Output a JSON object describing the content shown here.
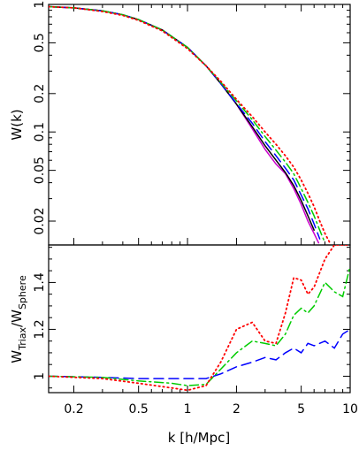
{
  "chart_data": [
    {
      "type": "line",
      "panel": "top",
      "ylabel": "W(k)",
      "yscale": "log",
      "xscale": "log",
      "xlim": [
        0.14,
        10
      ],
      "ylim": [
        0.013,
        1.0
      ],
      "yticks": [
        1,
        0.5,
        0.2,
        0.1,
        0.05,
        0.02
      ],
      "ytick_labels": [
        "1",
        "0.5",
        "0.2",
        "0.1",
        "0.05",
        "0.02"
      ],
      "grid": false,
      "series": [
        {
          "style": "solid",
          "color": "#cc00cc",
          "x": [
            0.14,
            0.2,
            0.3,
            0.4,
            0.5,
            0.7,
            1.0,
            1.3,
            1.6,
            2.0,
            2.5,
            3.0,
            3.5,
            4.0,
            4.5,
            5.0,
            5.5,
            6.0,
            6.4
          ],
          "y": [
            0.96,
            0.94,
            0.89,
            0.83,
            0.76,
            0.63,
            0.46,
            0.33,
            0.24,
            0.165,
            0.106,
            0.073,
            0.056,
            0.047,
            0.036,
            0.027,
            0.02,
            0.016,
            0.0135
          ]
        },
        {
          "style": "solid",
          "color": "#000000",
          "x": [
            0.14,
            0.2,
            0.3,
            0.4,
            0.5,
            0.7,
            1.0,
            1.3,
            1.6,
            2.0,
            2.5,
            3.0,
            3.5,
            4.0,
            4.5,
            5.0,
            5.5,
            6.0
          ],
          "y": [
            0.96,
            0.94,
            0.89,
            0.83,
            0.76,
            0.63,
            0.46,
            0.33,
            0.24,
            0.165,
            0.11,
            0.078,
            0.06,
            0.048,
            0.038,
            0.029,
            0.022,
            0.017
          ]
        },
        {
          "style": "dashed",
          "color": "#0000ff",
          "x": [
            0.14,
            0.2,
            0.3,
            0.4,
            0.5,
            0.7,
            1.0,
            1.3,
            1.6,
            2.0,
            2.5,
            3.0,
            3.5,
            4.0,
            4.5,
            5.0,
            5.5,
            6.0,
            6.5
          ],
          "y": [
            0.96,
            0.94,
            0.89,
            0.83,
            0.76,
            0.63,
            0.46,
            0.33,
            0.24,
            0.167,
            0.117,
            0.084,
            0.065,
            0.052,
            0.042,
            0.032,
            0.025,
            0.019,
            0.0145
          ]
        },
        {
          "style": "dash-dot",
          "color": "#00cc00",
          "x": [
            0.14,
            0.2,
            0.3,
            0.4,
            0.5,
            0.7,
            1.0,
            1.3,
            1.6,
            2.0,
            2.5,
            3.0,
            3.5,
            4.0,
            4.5,
            5.0,
            5.5,
            6.0,
            6.5,
            7.0
          ],
          "y": [
            0.96,
            0.94,
            0.89,
            0.83,
            0.76,
            0.63,
            0.46,
            0.33,
            0.245,
            0.175,
            0.125,
            0.092,
            0.072,
            0.058,
            0.047,
            0.036,
            0.028,
            0.022,
            0.017,
            0.0135
          ]
        },
        {
          "style": "dotted",
          "color": "#ff0000",
          "x": [
            0.14,
            0.2,
            0.3,
            0.4,
            0.5,
            0.7,
            1.0,
            1.3,
            1.6,
            2.0,
            2.5,
            3.0,
            3.5,
            4.0,
            4.5,
            5.0,
            5.5,
            6.0,
            6.5,
            7.0,
            7.5
          ],
          "y": [
            0.96,
            0.94,
            0.88,
            0.82,
            0.75,
            0.62,
            0.45,
            0.33,
            0.25,
            0.18,
            0.132,
            0.1,
            0.08,
            0.065,
            0.053,
            0.042,
            0.033,
            0.026,
            0.02,
            0.016,
            0.0135
          ]
        }
      ]
    },
    {
      "type": "line",
      "panel": "bottom",
      "ylabel": "W_Triax/W_Sphere",
      "ylabel_main": "W",
      "ylabel_sub1": "Triax",
      "ylabel_sep": "/W",
      "ylabel_sub2": "Sphere",
      "xlabel": "k [h/Mpc]",
      "xscale": "log",
      "xlim": [
        0.14,
        10
      ],
      "ylim": [
        0.93,
        1.56
      ],
      "yticks": [
        1,
        1.2,
        1.4
      ],
      "ytick_labels": [
        "1",
        "1.2",
        "1.4"
      ],
      "xticks": [
        0.2,
        0.5,
        1,
        2,
        5,
        10
      ],
      "xtick_labels": [
        "0.2",
        "0.5",
        "1",
        "2",
        "5",
        "10"
      ],
      "grid": false,
      "series": [
        {
          "style": "dashed",
          "color": "#0000ff",
          "x": [
            0.14,
            0.3,
            0.5,
            0.8,
            1.0,
            1.3,
            1.6,
            2.0,
            2.5,
            3.0,
            3.5,
            4.0,
            4.5,
            5.0,
            5.5,
            6.0,
            7.0,
            8.0,
            9.0,
            10.0
          ],
          "y": [
            1.0,
            0.995,
            0.99,
            0.99,
            0.99,
            0.99,
            1.01,
            1.04,
            1.06,
            1.08,
            1.07,
            1.1,
            1.12,
            1.1,
            1.14,
            1.13,
            1.15,
            1.12,
            1.18,
            1.2
          ]
        },
        {
          "style": "dash-dot",
          "color": "#00cc00",
          "x": [
            0.14,
            0.3,
            0.5,
            0.8,
            1.0,
            1.3,
            1.6,
            2.0,
            2.5,
            3.0,
            3.5,
            4.0,
            4.5,
            5.0,
            5.5,
            6.0,
            7.0,
            8.0,
            9.0,
            10.0
          ],
          "y": [
            1.0,
            0.995,
            0.98,
            0.97,
            0.96,
            0.965,
            1.03,
            1.1,
            1.15,
            1.14,
            1.13,
            1.18,
            1.26,
            1.29,
            1.27,
            1.3,
            1.4,
            1.36,
            1.34,
            1.47
          ]
        },
        {
          "style": "dotted",
          "color": "#ff0000",
          "x": [
            0.14,
            0.3,
            0.5,
            0.8,
            1.0,
            1.3,
            1.6,
            2.0,
            2.5,
            3.0,
            3.5,
            4.0,
            4.5,
            5.0,
            5.5,
            6.0,
            7.0,
            8.0,
            9.0,
            10.0
          ],
          "y": [
            1.0,
            0.99,
            0.97,
            0.95,
            0.94,
            0.96,
            1.06,
            1.2,
            1.23,
            1.15,
            1.14,
            1.27,
            1.42,
            1.41,
            1.35,
            1.38,
            1.5,
            1.56,
            1.56,
            1.56
          ]
        }
      ]
    }
  ]
}
